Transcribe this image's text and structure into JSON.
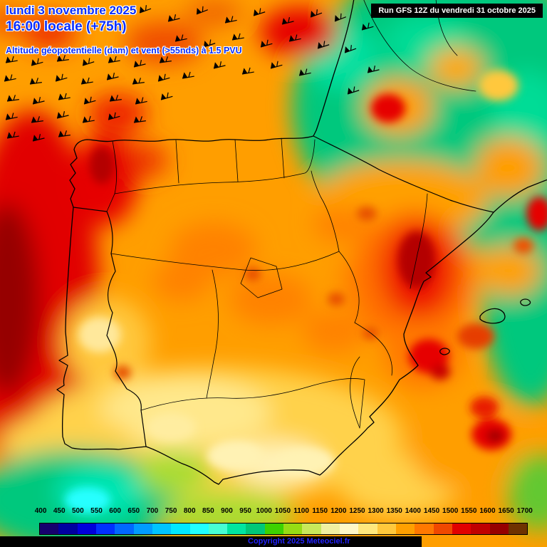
{
  "header": {
    "date_line": "lundi 3 novembre 2025",
    "time_line": "16:00 locale (+75h)",
    "subtitle": "Altitude géopotentielle (dam) et vent (>55nds) à 1.5 PVU",
    "run_info": "Run GFS 12Z du vendredi 31 octobre 2025"
  },
  "legend": {
    "tick_labels": [
      "400",
      "450",
      "500",
      "550",
      "600",
      "650",
      "700",
      "750",
      "800",
      "850",
      "900",
      "950",
      "1000",
      "1050",
      "1100",
      "1150",
      "1200",
      "1250",
      "1300",
      "1350",
      "1400",
      "1450",
      "1500",
      "1550",
      "1600",
      "1650",
      "1700"
    ],
    "cell_colors": [
      "#16006e",
      "#0000a0",
      "#0000dc",
      "#0030ff",
      "#0068ff",
      "#009cff",
      "#00c4ff",
      "#00e8ff",
      "#20ffff",
      "#46ffd2",
      "#00e6a0",
      "#00c878",
      "#3cd200",
      "#96dc14",
      "#c8e85a",
      "#f0f0a0",
      "#fff8c8",
      "#ffe87d",
      "#ffc83c",
      "#ffa000",
      "#ff7800",
      "#f04800",
      "#e10000",
      "#c00000",
      "#960000",
      "#6e3200"
    ]
  },
  "footer": {
    "copyright": "Copyright 2025 Meteociel.fr"
  },
  "colors": {
    "header_text": "#0a2fff",
    "run_box_bg": "#000000",
    "run_box_text": "#ffffff",
    "copyright_text": "#2222ff",
    "base_fill": "#ff9e00"
  }
}
